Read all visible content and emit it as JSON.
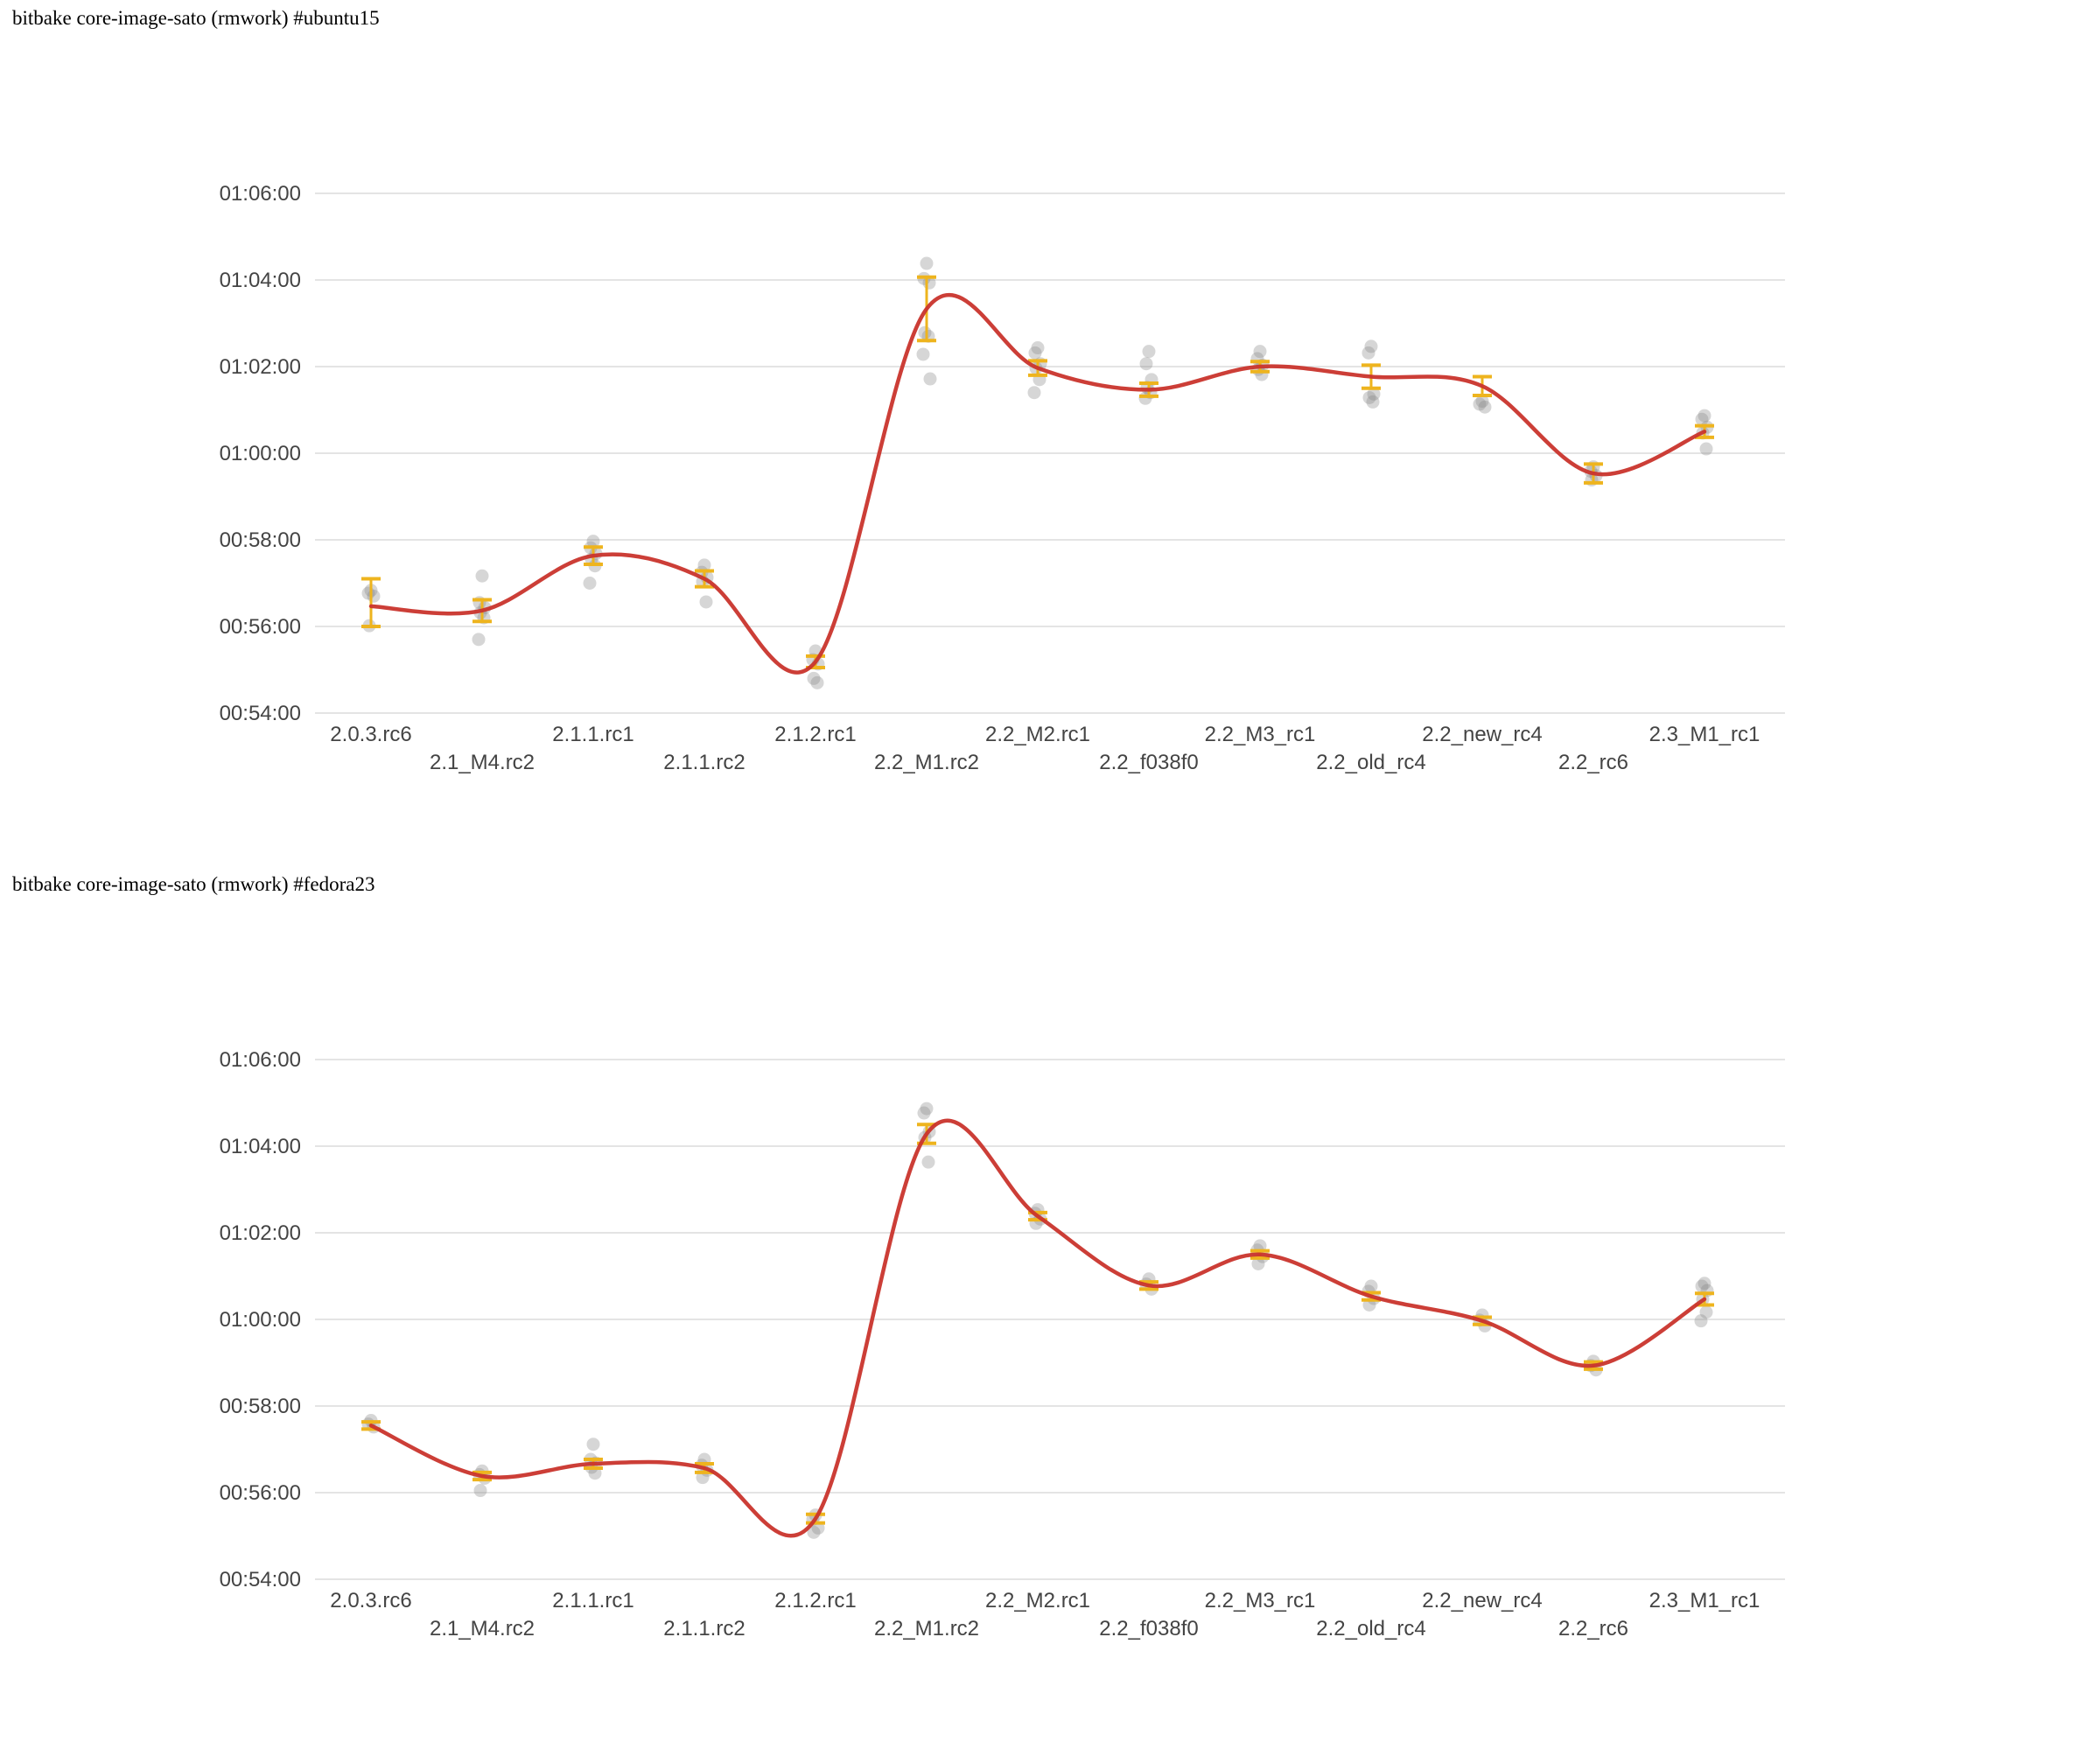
{
  "page": {
    "background": "#ffffff"
  },
  "style": {
    "trend_color": "#c9342c",
    "errorbar_color": "#eeb41e",
    "scatter_color": "#8a8a8a",
    "grid_color": "#dcdcdc",
    "axis_text_color": "#444444",
    "title_color": "#000000"
  },
  "charts": [
    {
      "title": "bitbake core-image-sato (rmwork) #ubuntu15",
      "chart_data": {
        "type": "scatter",
        "subtype": "scatter-with-errorbars-and-smoothed-trend",
        "title": "bitbake core-image-sato (rmwork) #ubuntu15",
        "xlabel": "",
        "ylabel": "",
        "grid": true,
        "legend": false,
        "ylim": [
          "00:54:00",
          "01:06:00"
        ],
        "yticks": [
          "01:06:00",
          "01:04:00",
          "01:02:00",
          "01:00:00",
          "00:58:00",
          "00:56:00",
          "00:54:00"
        ],
        "categories": [
          "2.0.3.rc6",
          "2.1_M4.rc2",
          "2.1.1.rc1",
          "2.1.1.rc2",
          "2.1.2.rc1",
          "2.2_M1.rc2",
          "2.2_M2.rc1",
          "2.2_f038f0",
          "2.2_M3_rc1",
          "2.2_old_rc4",
          "2.2_new_rc4",
          "2.2_rc6",
          "2.3_M1_rc1"
        ],
        "series": [
          {
            "name": "mean",
            "values": [
              "00:56:28",
              "00:56:22",
              "00:57:38",
              "00:57:06",
              "00:55:11",
              "01:03:20",
              "01:01:58",
              "01:01:28",
              "01:02:00",
              "01:01:46",
              "01:01:33",
              "00:59:32",
              "01:00:30"
            ]
          },
          {
            "name": "error_low",
            "values": [
              "00:56:00",
              "00:56:07",
              "00:57:26",
              "00:56:55",
              "00:55:03",
              "01:02:36",
              "01:01:48",
              "01:01:19",
              "01:01:53",
              "01:01:30",
              "01:01:20",
              "00:59:19",
              "01:00:22"
            ]
          },
          {
            "name": "error_high",
            "values": [
              "00:57:06",
              "00:56:37",
              "00:57:50",
              "00:57:17",
              "00:55:19",
              "01:04:04",
              "01:02:08",
              "01:01:37",
              "01:02:07",
              "01:02:02",
              "01:01:46",
              "00:59:45",
              "01:00:38"
            ]
          },
          {
            "name": "runs",
            "values": [
              [
                "00:56:50",
                "00:56:46",
                "00:56:42",
                "00:56:01"
              ],
              [
                "00:57:10",
                "00:56:33",
                "00:56:26",
                "00:56:19",
                "00:56:12",
                "00:55:42"
              ],
              [
                "00:57:58",
                "00:57:49",
                "00:57:41",
                "00:57:33",
                "00:57:24",
                "00:57:00"
              ],
              [
                "00:57:25",
                "00:57:15",
                "00:57:08",
                "00:57:02",
                "00:56:34"
              ],
              [
                "00:55:26",
                "00:55:14",
                "00:55:08",
                "00:54:48",
                "00:54:42"
              ],
              [
                "01:04:23",
                "01:04:02",
                "01:03:56",
                "01:02:47",
                "01:02:42",
                "01:02:17",
                "01:01:43"
              ],
              [
                "01:02:26",
                "01:02:19",
                "01:02:04",
                "01:01:58",
                "01:01:42",
                "01:01:24"
              ],
              [
                "01:02:21",
                "01:02:04",
                "01:01:42",
                "01:01:31",
                "01:01:24",
                "01:01:16"
              ],
              [
                "01:02:21",
                "01:02:11",
                "01:02:02",
                "01:01:56",
                "01:01:49"
              ],
              [
                "01:02:28",
                "01:02:19",
                "01:01:22",
                "01:01:17",
                "01:01:11"
              ],
              [
                "01:01:12",
                "01:01:08",
                "01:01:04"
              ],
              [
                "00:59:41",
                "00:59:35",
                "00:59:29",
                "00:59:23"
              ],
              [
                "01:00:52",
                "01:00:47",
                "01:00:36",
                "01:00:28",
                "01:00:06"
              ]
            ]
          }
        ]
      }
    },
    {
      "title": "bitbake core-image-sato (rmwork) #fedora23",
      "chart_data": {
        "type": "scatter",
        "subtype": "scatter-with-errorbars-and-smoothed-trend",
        "title": "bitbake core-image-sato (rmwork) #fedora23",
        "xlabel": "",
        "ylabel": "",
        "grid": true,
        "legend": false,
        "ylim": [
          "00:54:00",
          "01:06:00"
        ],
        "yticks": [
          "01:06:00",
          "01:04:00",
          "01:02:00",
          "01:00:00",
          "00:58:00",
          "00:56:00",
          "00:54:00"
        ],
        "categories": [
          "2.0.3.rc6",
          "2.1_M4.rc2",
          "2.1.1.rc1",
          "2.1.1.rc2",
          "2.1.2.rc1",
          "2.2_M1.rc2",
          "2.2_M2.rc1",
          "2.2_f038f0",
          "2.2_M3_rc1",
          "2.2_old_rc4",
          "2.2_new_rc4",
          "2.2_rc6",
          "2.3_M1_rc1"
        ],
        "series": [
          {
            "name": "mean",
            "values": [
              "00:57:33",
              "00:56:23",
              "00:56:40",
              "00:56:34",
              "00:55:24",
              "01:04:17",
              "01:02:23",
              "01:00:47",
              "01:01:30",
              "01:00:32",
              "00:59:58",
              "00:58:56",
              "01:00:28"
            ]
          },
          {
            "name": "error_low",
            "values": [
              "00:57:28",
              "00:56:18",
              "00:56:34",
              "00:56:28",
              "00:55:18",
              "01:04:04",
              "01:02:18",
              "01:00:42",
              "01:01:25",
              "01:00:27",
              "00:59:53",
              "00:58:51",
              "01:00:20"
            ]
          },
          {
            "name": "error_high",
            "values": [
              "00:57:38",
              "00:56:28",
              "00:56:46",
              "00:56:40",
              "00:55:30",
              "01:04:30",
              "01:02:28",
              "01:00:52",
              "01:01:35",
              "01:00:37",
              "01:00:03",
              "00:59:01",
              "01:00:36"
            ]
          },
          {
            "name": "runs",
            "values": [
              [
                "00:57:40",
                "00:57:35",
                "00:57:31"
              ],
              [
                "00:56:30",
                "00:56:25",
                "00:56:20",
                "00:56:03"
              ],
              [
                "00:57:07",
                "00:56:46",
                "00:56:41",
                "00:56:35",
                "00:56:27"
              ],
              [
                "00:56:46",
                "00:56:38",
                "00:56:31",
                "00:56:21"
              ],
              [
                "00:55:29",
                "00:55:23",
                "00:55:11",
                "00:55:05"
              ],
              [
                "01:04:52",
                "01:04:46",
                "01:04:20",
                "01:04:12",
                "01:03:38"
              ],
              [
                "01:02:32",
                "01:02:27",
                "01:02:19",
                "01:02:13"
              ],
              [
                "01:00:56",
                "01:00:49",
                "01:00:42"
              ],
              [
                "01:01:42",
                "01:01:36",
                "01:01:27",
                "01:01:17"
              ],
              [
                "01:00:46",
                "01:00:39",
                "01:00:29",
                "01:00:20"
              ],
              [
                "01:00:06",
                "00:59:59",
                "00:59:51"
              ],
              [
                "00:59:02",
                "00:58:56",
                "00:58:50"
              ],
              [
                "01:00:50",
                "01:00:46",
                "01:00:40",
                "01:00:28",
                "01:00:10",
                "00:59:58"
              ]
            ]
          }
        ]
      }
    }
  ]
}
